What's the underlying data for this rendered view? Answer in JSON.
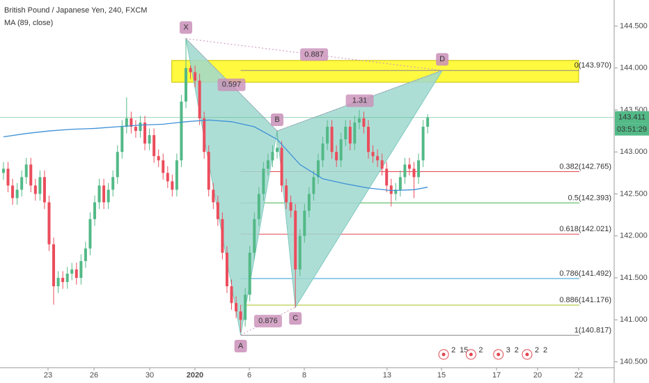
{
  "chart_data": {
    "type": "candlestick",
    "title": "British Pound / Japanese Yen, 240, FXCM",
    "xlim": [
      -0.76,
      133.89
    ],
    "ylim": [
      140.43,
      144.81
    ],
    "yticks": [
      {
        "value": 144.5,
        "label": "144.500"
      },
      {
        "value": 144.0,
        "label": "144.000"
      },
      {
        "value": 143.5,
        "label": "143.500"
      },
      {
        "value": 143.0,
        "label": "143.000"
      },
      {
        "value": 142.5,
        "label": "142.500"
      },
      {
        "value": 142.0,
        "label": "142.000"
      },
      {
        "value": 141.5,
        "label": "141.500"
      },
      {
        "value": 141.0,
        "label": "141.000"
      },
      {
        "value": 140.5,
        "label": "140.500"
      }
    ],
    "xticks": [
      {
        "value": 9.77,
        "label": "23"
      },
      {
        "value": 19.85,
        "label": "26"
      },
      {
        "value": 32.06,
        "label": "30"
      },
      {
        "value": 41.98,
        "label": "2020"
      },
      {
        "value": 53.9,
        "label": "6"
      },
      {
        "value": 65.95,
        "label": "8"
      },
      {
        "value": 84.1,
        "label": "13"
      },
      {
        "value": 96.03,
        "label": "15"
      },
      {
        "value": 108.1,
        "label": "17"
      },
      {
        "value": 117.1,
        "label": "20"
      },
      {
        "value": 126.1,
        "label": "22"
      }
    ],
    "up_color": "#53b987",
    "down_color": "#eb4d5c",
    "open": [
      142.75,
      142.8,
      142.6,
      142.45,
      142.55,
      142.7,
      142.85,
      142.6,
      142.5,
      142.7,
      142.4,
      141.9,
      141.4,
      141.5,
      141.45,
      141.55,
      141.6,
      141.5,
      141.7,
      141.85,
      142.2,
      142.4,
      142.6,
      142.4,
      142.55,
      142.7,
      143.0,
      143.3,
      143.4,
      143.3,
      143.25,
      143.35,
      143.1,
      143.2,
      142.95,
      142.9,
      142.75,
      142.65,
      142.55,
      142.9,
      143.6,
      144.0,
      143.95,
      143.85,
      143.4,
      143.0,
      142.55,
      142.4,
      142.2,
      141.8,
      141.4,
      141.2,
      141.1,
      141.0,
      141.3,
      141.8,
      142.2,
      142.5,
      142.8,
      142.9,
      143.0,
      143.05,
      142.6,
      142.4,
      142.3,
      141.6,
      142.0,
      142.3,
      142.5,
      142.7,
      142.9,
      143.1,
      143.3,
      143.0,
      142.9,
      143.15,
      143.3,
      143.1,
      143.35,
      143.4,
      143.3,
      143.0,
      142.95,
      142.9,
      142.8,
      142.6,
      142.5,
      142.55,
      142.7,
      142.85,
      142.8,
      142.7,
      142.9,
      143.3
    ],
    "high": [
      142.88,
      142.88,
      142.68,
      142.63,
      142.78,
      142.93,
      142.93,
      142.68,
      142.78,
      142.78,
      142.48,
      141.98,
      141.58,
      141.58,
      141.63,
      141.68,
      141.68,
      141.78,
      141.93,
      142.28,
      142.48,
      142.68,
      142.68,
      142.63,
      142.78,
      143.08,
      143.38,
      143.65,
      143.48,
      143.38,
      143.43,
      143.43,
      143.28,
      143.28,
      143.03,
      142.98,
      142.83,
      142.73,
      142.98,
      143.68,
      144.35,
      144.03,
      144.03,
      143.93,
      143.48,
      143.08,
      142.63,
      142.48,
      142.28,
      141.88,
      141.48,
      141.28,
      141.18,
      141.38,
      141.88,
      142.28,
      142.58,
      142.88,
      142.98,
      143.08,
      143.25,
      143.13,
      142.68,
      142.48,
      142.38,
      142.08,
      142.38,
      142.58,
      142.78,
      142.98,
      143.18,
      143.38,
      143.38,
      143.08,
      143.23,
      143.38,
      143.38,
      143.43,
      143.5,
      143.48,
      143.38,
      143.08,
      143.03,
      142.98,
      142.88,
      142.68,
      142.63,
      142.78,
      142.93,
      142.93,
      142.88,
      142.98,
      143.38,
      143.45
    ],
    "low": [
      142.67,
      142.52,
      142.37,
      142.37,
      142.47,
      142.62,
      142.52,
      142.42,
      142.42,
      142.32,
      141.82,
      141.18,
      141.32,
      141.37,
      141.37,
      141.47,
      141.42,
      141.42,
      141.62,
      141.77,
      142.12,
      142.32,
      142.32,
      142.32,
      142.47,
      142.62,
      142.92,
      143.22,
      143.22,
      143.17,
      143.17,
      143.02,
      143.02,
      142.87,
      142.82,
      142.67,
      142.57,
      142.47,
      142.47,
      142.82,
      143.52,
      143.87,
      143.77,
      143.32,
      142.92,
      142.47,
      142.32,
      142.12,
      141.72,
      141.32,
      141.12,
      141.02,
      140.85,
      140.92,
      141.22,
      141.72,
      142.12,
      142.42,
      142.72,
      142.82,
      142.92,
      142.52,
      142.32,
      142.22,
      141.15,
      141.52,
      141.92,
      142.22,
      142.42,
      142.62,
      142.82,
      143.02,
      142.92,
      142.82,
      142.82,
      143.07,
      143.02,
      143.02,
      143.27,
      143.22,
      142.92,
      142.87,
      142.82,
      142.72,
      142.52,
      142.35,
      142.42,
      142.47,
      142.62,
      142.72,
      142.45,
      142.62,
      142.82,
      143.22
    ],
    "close": [
      142.8,
      142.6,
      142.45,
      142.55,
      142.7,
      142.85,
      142.6,
      142.5,
      142.7,
      142.4,
      141.9,
      141.4,
      141.5,
      141.45,
      141.55,
      141.6,
      141.5,
      141.7,
      141.85,
      142.2,
      142.4,
      142.6,
      142.4,
      142.55,
      142.7,
      143.0,
      143.3,
      143.4,
      143.3,
      143.25,
      143.35,
      143.1,
      143.2,
      142.95,
      142.9,
      142.75,
      142.65,
      142.55,
      142.9,
      143.6,
      144.0,
      143.95,
      143.85,
      143.4,
      143.0,
      142.55,
      142.4,
      142.2,
      141.8,
      141.4,
      141.2,
      141.1,
      141.0,
      141.3,
      141.8,
      142.2,
      142.5,
      142.8,
      142.9,
      143.0,
      143.05,
      142.6,
      142.4,
      142.3,
      141.6,
      142.0,
      142.3,
      142.5,
      142.7,
      142.9,
      143.1,
      143.3,
      143.0,
      142.9,
      143.15,
      143.3,
      143.1,
      143.35,
      143.4,
      143.3,
      143.0,
      142.95,
      142.9,
      142.8,
      142.6,
      142.5,
      142.55,
      142.7,
      142.85,
      142.8,
      142.7,
      142.9,
      143.3,
      143.411
    ],
    "ma": {
      "name": "MA (89, close)",
      "color": "#3c8fd6",
      "x": [
        0,
        5,
        10,
        15,
        20,
        25,
        30,
        35,
        40,
        45,
        50,
        55,
        60,
        65,
        70,
        75,
        80,
        85,
        90,
        93
      ],
      "values": [
        143.18,
        143.22,
        143.25,
        143.27,
        143.28,
        143.3,
        143.32,
        143.33,
        143.36,
        143.38,
        143.36,
        143.3,
        143.15,
        142.85,
        142.68,
        142.62,
        142.57,
        142.54,
        142.55,
        142.58
      ]
    },
    "countdown": "03:51:29",
    "zone": {
      "x": [
        36.9,
        126.1
      ],
      "y": [
        143.83,
        144.09
      ],
      "color": "#fff700"
    },
    "pattern": {
      "fill": "#9fd8cf",
      "points": [
        {
          "label": "X",
          "x": 40,
          "y": 144.35
        },
        {
          "label": "A",
          "x": 52,
          "y": 140.82
        },
        {
          "label": "B",
          "x": 60,
          "y": 143.25
        },
        {
          "label": "C",
          "x": 64,
          "y": 141.15
        },
        {
          "label": "D",
          "x": 96.2,
          "y": 143.97
        }
      ],
      "ratios": [
        {
          "label": "0.597",
          "from": 0,
          "to": 2
        },
        {
          "label": "0.876",
          "from": 1,
          "to": 3
        },
        {
          "label": "1.31",
          "from": 2,
          "to": 4
        },
        {
          "label": "0.887",
          "from": 0,
          "to": 4
        }
      ]
    },
    "levels": [
      {
        "label": "0(143.970)",
        "value": 143.97,
        "color": "#888888"
      },
      {
        "label": "0.382(142.765)",
        "value": 142.765,
        "color": "#e0464f"
      },
      {
        "label": "0.5(142.393)",
        "value": 142.393,
        "color": "#4caf50"
      },
      {
        "label": "0.618(142.021)",
        "value": 142.021,
        "color": "#e0464f"
      },
      {
        "label": "0.786(141.492)",
        "value": 141.492,
        "color": "#2a9bd6"
      },
      {
        "label": "0.886(141.176)",
        "value": 141.176,
        "color": "#a6c224"
      },
      {
        "label": "1(140.817)",
        "value": 140.817,
        "color": "#888888"
      }
    ],
    "levels_start": 52,
    "events": [
      {
        "x": 96.5,
        "labels": [
          "2",
          "15"
        ]
      },
      {
        "x": 102.5,
        "labels": [
          "2"
        ]
      },
      {
        "x": 108.5,
        "labels": [
          "3",
          "2"
        ]
      },
      {
        "x": 114.8,
        "labels": [
          "2",
          "2"
        ]
      }
    ]
  }
}
